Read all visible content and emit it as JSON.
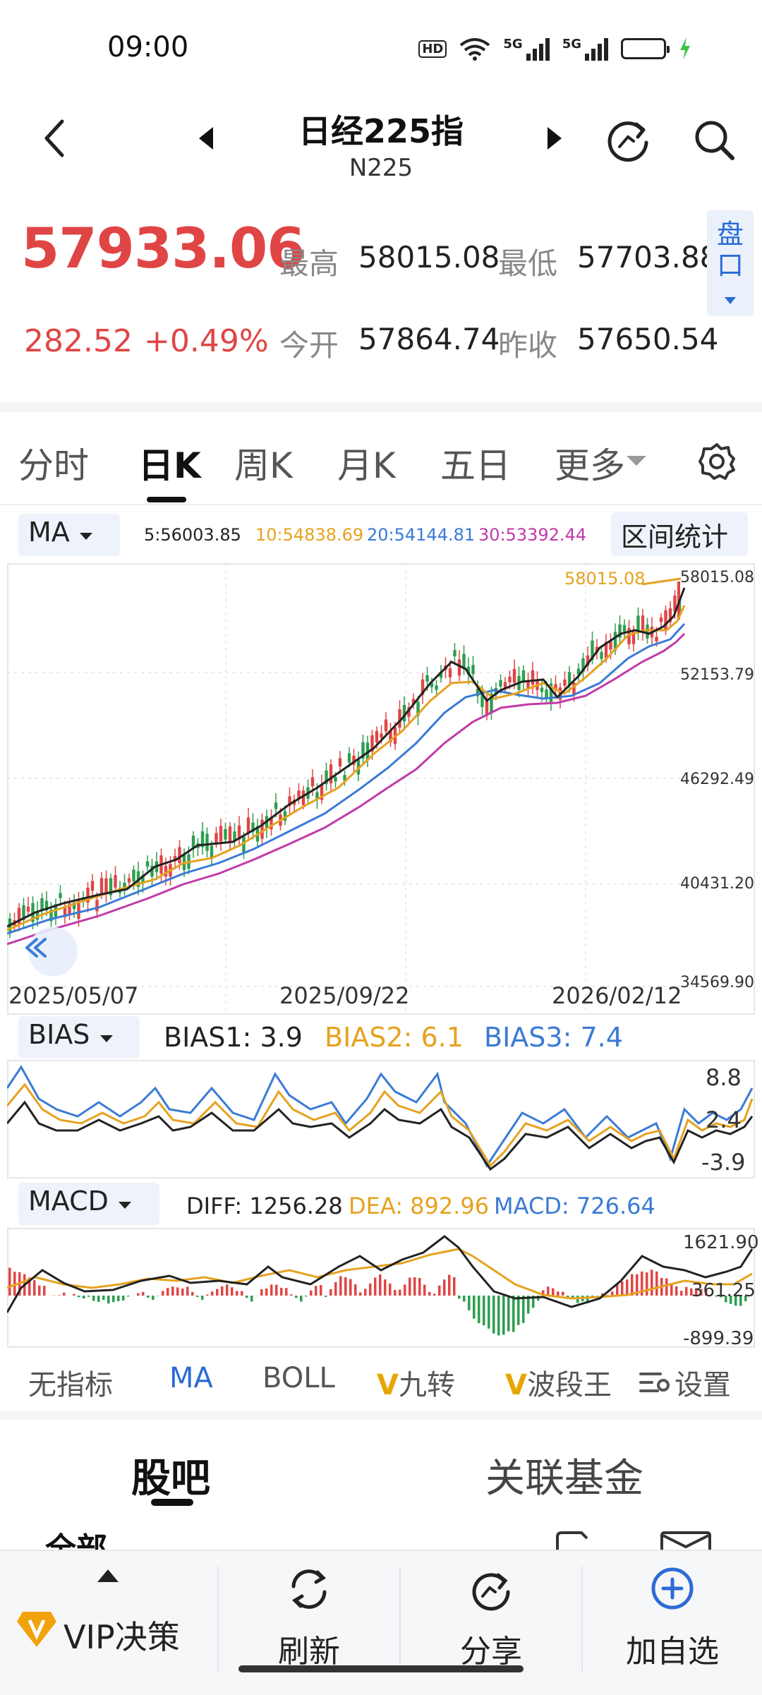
{
  "status_bar": {
    "time": "09:00",
    "hd_label": "HD",
    "net1": "5G",
    "net2": "5G",
    "battery_level": 1.0
  },
  "header": {
    "title": "日经225指",
    "subtitle": "N225"
  },
  "quote": {
    "price": "57933.06",
    "change": "282.52",
    "change_pct": "+0.49%",
    "high_label": "最高",
    "high": "58015.08",
    "low_label": "最低",
    "low": "57703.88",
    "open_label": "今开",
    "open": "57864.74",
    "prev_close_label": "昨收",
    "prev_close": "57650.54",
    "pankou_line1": "盘",
    "pankou_line2": "口"
  },
  "tabs": {
    "t1": "分时",
    "t2": "日K",
    "t3": "周K",
    "t4": "月K",
    "t5": "五日",
    "t6": "更多",
    "active": "日K"
  },
  "ma_bar": {
    "selector": "MA",
    "ma5": "5:56003.85",
    "ma10": "10:54838.69",
    "ma20": "20:54144.81",
    "ma30": "30:53392.44",
    "range_stats": "区间统计"
  },
  "colors": {
    "up": "#e04545",
    "down": "#2e9e4f",
    "ma5": "#222222",
    "ma10": "#e6a21f",
    "ma20": "#3a7bd5",
    "ma30": "#c23aa8",
    "accent": "#2c6bd6"
  },
  "kline_chart": {
    "max_marker": "58015.08",
    "y_ticks": [
      "58015.08",
      "52153.79",
      "46292.49",
      "40431.20",
      "34569.90"
    ],
    "x_dates": [
      "2025/05/07",
      "2025/09/22",
      "2026/02/12"
    ]
  },
  "bias_panel": {
    "selector": "BIAS",
    "bias1": "BIAS1: 3.9",
    "bias2": "BIAS2: 6.1",
    "bias3": "BIAS3: 7.4",
    "y_ticks": [
      "8.8",
      "2.4",
      "-3.9"
    ]
  },
  "macd_panel": {
    "selector": "MACD",
    "diff": "DIFF: 1256.28",
    "dea": "DEA: 892.96",
    "macd": "MACD: 726.64",
    "y_ticks": [
      "1621.90",
      "361.25",
      "-899.39"
    ]
  },
  "indicator_bar": {
    "none": "无指标",
    "ma": "MA",
    "boll": "BOLL",
    "v_mark": "V",
    "jiuzhuan": "九转",
    "boduanwang": "波段王",
    "settings": "设置"
  },
  "guba_tabs": {
    "forum": "股吧",
    "funds": "关联基金",
    "partial": "全部"
  },
  "bottom_nav": {
    "vip": "VIP决策",
    "refresh": "刷新",
    "share": "分享",
    "add_watch": "加自选"
  }
}
